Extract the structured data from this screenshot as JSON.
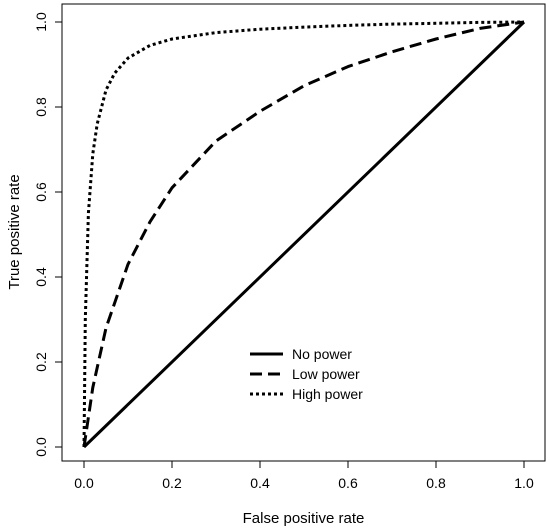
{
  "chart_data": {
    "type": "line",
    "title": "",
    "xlabel": "False positive rate",
    "ylabel": "True positive rate",
    "xlim": [
      0,
      1
    ],
    "ylim": [
      0,
      1
    ],
    "x_ticks": [
      "0.0",
      "0.2",
      "0.4",
      "0.6",
      "0.8",
      "1.0"
    ],
    "y_ticks": [
      "0.0",
      "0.2",
      "0.4",
      "0.6",
      "0.8",
      "1.0"
    ],
    "grid": false,
    "legend_position": "bottom-center",
    "series": [
      {
        "name": "No power",
        "line_style": "solid",
        "x": [
          0.0,
          1.0
        ],
        "y": [
          0.0,
          1.0
        ]
      },
      {
        "name": "Low power",
        "line_style": "dashed",
        "x": [
          0.0,
          0.02,
          0.05,
          0.1,
          0.15,
          0.2,
          0.3,
          0.4,
          0.5,
          0.6,
          0.7,
          0.8,
          0.9,
          1.0
        ],
        "y": [
          0.0,
          0.14,
          0.28,
          0.43,
          0.53,
          0.61,
          0.72,
          0.79,
          0.85,
          0.895,
          0.93,
          0.96,
          0.985,
          1.0
        ]
      },
      {
        "name": "High power",
        "line_style": "dotted",
        "x": [
          0.0,
          0.003,
          0.01,
          0.02,
          0.03,
          0.05,
          0.07,
          0.1,
          0.15,
          0.2,
          0.3,
          0.4,
          0.5,
          0.6,
          0.7,
          0.8,
          0.9,
          1.0
        ],
        "y": [
          0.0,
          0.3,
          0.55,
          0.69,
          0.76,
          0.84,
          0.88,
          0.915,
          0.945,
          0.96,
          0.975,
          0.983,
          0.988,
          0.992,
          0.995,
          0.997,
          0.999,
          1.0
        ]
      }
    ],
    "line_color": "#000000"
  }
}
